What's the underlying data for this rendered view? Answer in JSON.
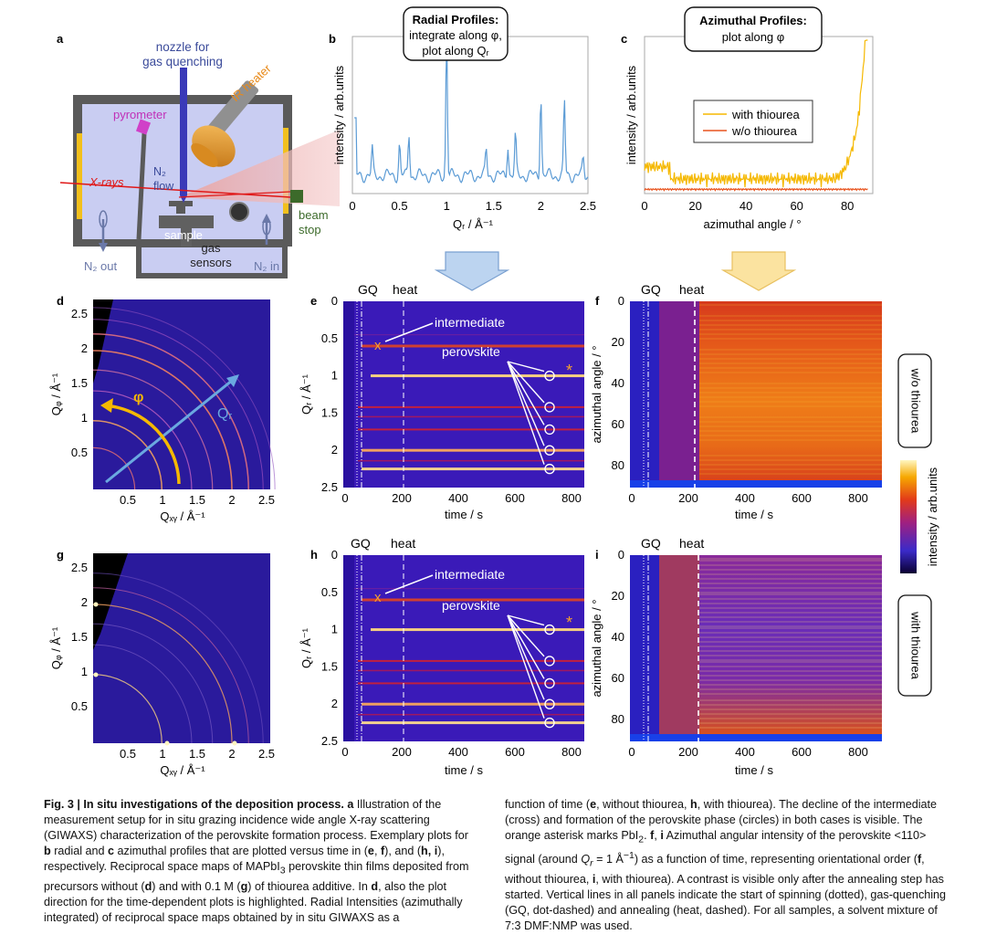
{
  "panels": {
    "a": {
      "letter": "a",
      "nozzle": [
        "nozzle for",
        "gas quenching"
      ],
      "ir_heater": "IR heater",
      "pyrometer": "pyrometer",
      "xrays": "X-rays",
      "n2flow": [
        "N₂",
        "flow"
      ],
      "sample": "sample",
      "gas_sensors": [
        "gas",
        "sensors"
      ],
      "beam_stop": [
        "beam",
        "stop"
      ],
      "n2_out": "N₂ out",
      "n2_in": "N₂ in"
    },
    "b": {
      "letter": "b",
      "box": [
        "Radial Profiles:",
        "integrate along φ,",
        "plot along Qᵣ"
      ],
      "ylabel": "intensity / arb.units",
      "xlabel": "Qᵣ / Å⁻¹",
      "xticks": [
        "0",
        "0.5",
        "1",
        "1.5",
        "2",
        "2.5"
      ]
    },
    "c": {
      "letter": "c",
      "box": [
        "Azimuthal Profiles:",
        "plot along φ"
      ],
      "ylabel": "intensity / arb.units",
      "xlabel": "azimuthal angle / °",
      "xticks": [
        "0",
        "20",
        "40",
        "60",
        "80"
      ],
      "legend": [
        "with thiourea",
        "w/o thiourea"
      ]
    },
    "d": {
      "letter": "d",
      "ylabel": "Qᵩ / Å⁻¹",
      "xlabel": "Qₓᵧ / Å⁻¹",
      "phi": "φ",
      "qr": "Qᵣ",
      "yticks": [
        "2.5",
        "2",
        "1.5",
        "1",
        "0.5"
      ],
      "xticks": [
        "0.5",
        "1",
        "1.5",
        "2",
        "2.5"
      ]
    },
    "e": {
      "letter": "e",
      "gq": "GQ",
      "heat": "heat",
      "intermediate": "intermediate",
      "perovskite": "perovskite",
      "cross": "x",
      "asterisk": "*",
      "ylabel": "Qᵣ / Å⁻¹",
      "xlabel": "time / s",
      "yticks": [
        "0",
        "0.5",
        "1",
        "1.5",
        "2",
        "2.5"
      ],
      "xticks": [
        "0",
        "200",
        "400",
        "600",
        "800"
      ]
    },
    "f": {
      "letter": "f",
      "gq": "GQ",
      "heat": "heat",
      "ylabel": "azimuthal angle / °",
      "xlabel": "time / s",
      "yticks": [
        "0",
        "20",
        "40",
        "60",
        "80"
      ],
      "xticks": [
        "0",
        "200",
        "400",
        "600",
        "800"
      ]
    },
    "g": {
      "letter": "g",
      "ylabel": "Qᵩ / Å⁻¹",
      "xlabel": "Qₓᵧ / Å⁻¹",
      "yticks": [
        "2.5",
        "2",
        "1.5",
        "1",
        "0.5"
      ],
      "xticks": [
        "0.5",
        "1",
        "1.5",
        "2",
        "2.5"
      ]
    },
    "h": {
      "letter": "h",
      "gq": "GQ",
      "heat": "heat",
      "intermediate": "intermediate",
      "perovskite": "perovskite",
      "cross": "x",
      "asterisk": "*",
      "ylabel": "Qᵣ / Å⁻¹",
      "xlabel": "time / s",
      "yticks": [
        "0",
        "0.5",
        "1",
        "1.5",
        "2",
        "2.5"
      ],
      "xticks": [
        "0",
        "200",
        "400",
        "600",
        "800"
      ]
    },
    "i": {
      "letter": "i",
      "gq": "GQ",
      "heat": "heat",
      "ylabel": "azimuthal angle / °",
      "xlabel": "time / s",
      "yticks": [
        "0",
        "20",
        "40",
        "60",
        "80"
      ],
      "xticks": [
        "0",
        "200",
        "400",
        "600",
        "800"
      ]
    }
  },
  "side_labels": {
    "wo": "w/o thiourea",
    "with": "with thiourea",
    "colorbar": "intensity / arb.units"
  },
  "caption": {
    "left": "<b>Fig. 3 | In situ investigations of the deposition process. a</b> Illustration of the measurement setup for in situ grazing incidence wide angle X-ray scattering (GIWAXS) characterization of the perovskite formation process. Exemplary plots for <b>b</b> radial and <b>c</b> azimuthal profiles that are plotted versus time in (<b>e</b>, <b>f</b>), and (<b>h, i</b>), respectively. Reciprocal space maps of MAPbI<sub>3</sub> perovskite thin films deposited from precursors without (<b>d</b>) and with 0.1 M (<b>g</b>) of thiourea additive. In <b>d</b>, also the plot direction for the time-dependent plots is highlighted. Radial Intensities (azimuthally integrated) of reciprocal space maps obtained by in situ GIWAXS as a",
    "right": "function of time (<b>e</b>, without thiourea, <b>h</b>, with thiourea). The decline of the intermediate (cross) and formation of the perovskite phase (circles) in both cases is visible. The orange asterisk marks PbI<sub>2</sub>. <b>f</b>, <b>i</b> Azimuthal angular intensity of the perovskite &lt;110&gt; signal (around <i>Q<sub>r</sub></i> = 1 Å<sup>−1</sup>) as a function of time, representing orientational order (<b>f</b>, without thiourea, <b>i</b>, with thiourea). A contrast is visible only after the annealing step has started. Vertical lines in all panels indicate the start of spinning (dotted), gas-quenching (GQ, dot-dashed) and annealing (heat, dashed). For all samples, a solvent mixture of 7:3 DMF:NMP was used."
  },
  "chart_data": [
    {
      "panel": "b",
      "type": "line",
      "xlabel": "Qᵣ / Å⁻¹",
      "ylabel": "intensity / arb.units",
      "xlim": [
        0,
        2.5
      ],
      "peaks_x": [
        0.21,
        0.5,
        0.6,
        1.0,
        1.42,
        1.65,
        1.73,
        2.0,
        2.25,
        2.45
      ],
      "peaks_h": [
        0.18,
        0.22,
        0.3,
        1.0,
        0.18,
        0.22,
        0.28,
        0.58,
        0.52,
        0.12
      ]
    },
    {
      "panel": "c",
      "type": "line",
      "xlabel": "azimuthal angle / °",
      "ylabel": "intensity / arb.units",
      "xlim": [
        0,
        90
      ],
      "series": [
        {
          "name": "with thiourea",
          "color": "#f5b800"
        },
        {
          "name": "w/o thiourea",
          "color": "#e8541f"
        }
      ]
    }
  ]
}
